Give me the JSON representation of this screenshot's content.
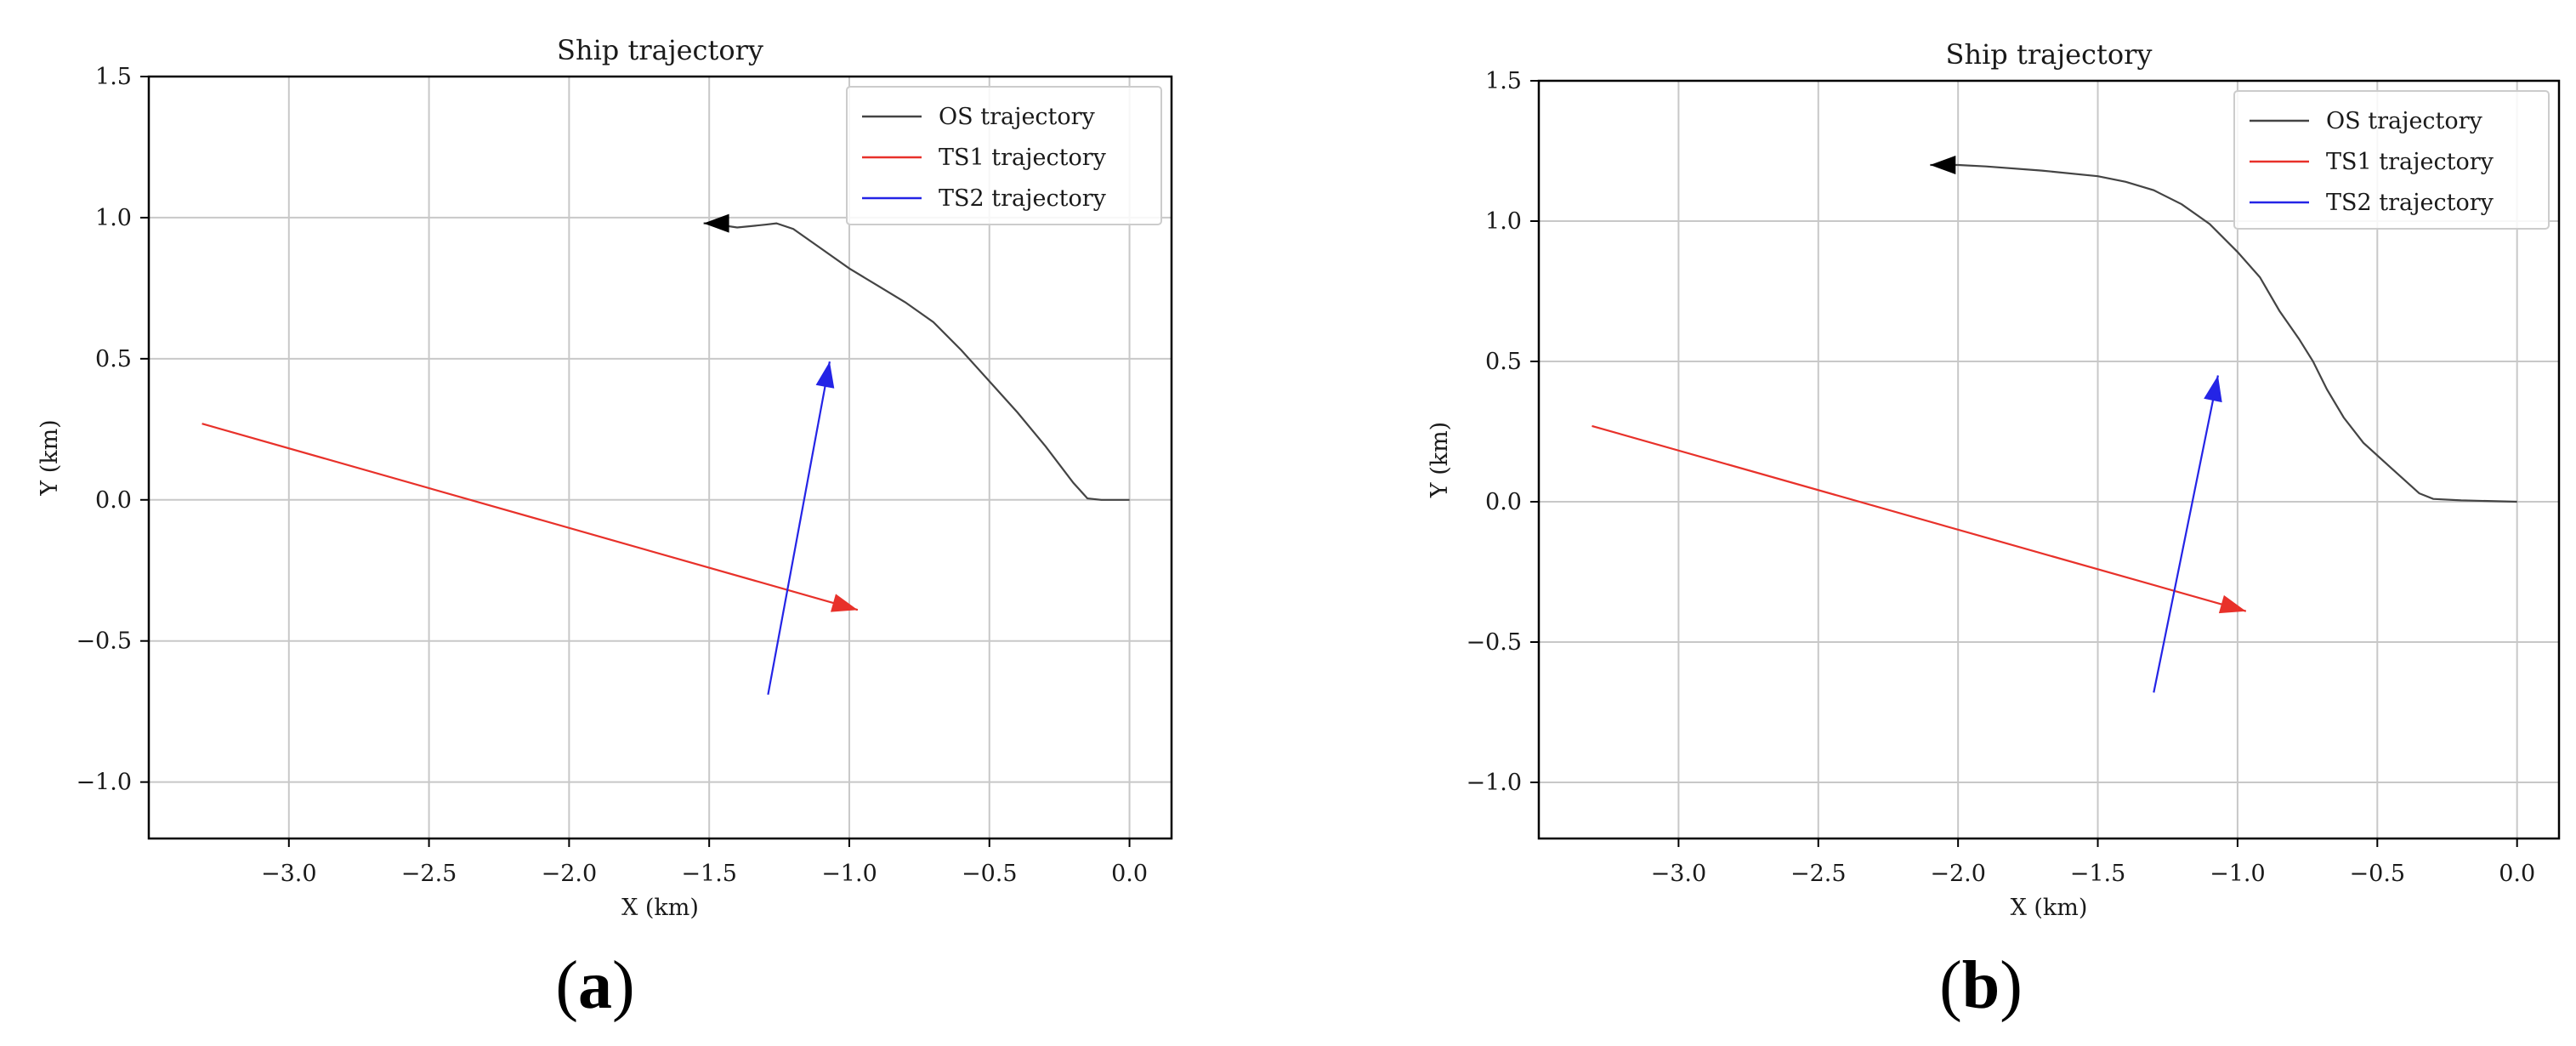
{
  "chart_data": [
    {
      "panel": "(a)",
      "type": "line",
      "title": "Ship trajectory",
      "xlabel": "X (km)",
      "ylabel": "Y (km)",
      "xlim": [
        -3.5,
        0.15
      ],
      "ylim": [
        -1.2,
        1.5
      ],
      "xticks": [
        -3.0,
        -2.5,
        -2.0,
        -1.5,
        -1.0,
        -0.5,
        0.0
      ],
      "xtick_labels": [
        "−3.0",
        "−2.5",
        "−2.0",
        "−1.5",
        "−1.0",
        "−0.5",
        "0.0"
      ],
      "yticks": [
        -1.0,
        -0.5,
        0.0,
        0.5,
        1.0,
        1.5
      ],
      "ytick_labels": [
        "−1.0",
        "−0.5",
        "0.0",
        "0.5",
        "1.0",
        "1.5"
      ],
      "grid": true,
      "legend_position": "top-right",
      "series": [
        {
          "name": "OS trajectory",
          "color": "#444444",
          "arrow_at_end": true,
          "points": [
            [
              0.0,
              0.0
            ],
            [
              -0.1,
              0.0
            ],
            [
              -0.15,
              0.005
            ],
            [
              -0.2,
              0.06
            ],
            [
              -0.3,
              0.19
            ],
            [
              -0.4,
              0.31
            ],
            [
              -0.5,
              0.42
            ],
            [
              -0.6,
              0.53
            ],
            [
              -0.7,
              0.63
            ],
            [
              -0.8,
              0.7
            ],
            [
              -0.9,
              0.76
            ],
            [
              -1.0,
              0.82
            ],
            [
              -1.1,
              0.89
            ],
            [
              -1.2,
              0.96
            ],
            [
              -1.26,
              0.98
            ],
            [
              -1.3,
              0.975
            ],
            [
              -1.4,
              0.965
            ],
            [
              -1.5,
              0.98
            ],
            [
              -1.52,
              0.98
            ]
          ]
        },
        {
          "name": "TS1 trajectory",
          "color": "#e8312a",
          "arrow_at_end": true,
          "points": [
            [
              -3.31,
              0.27
            ],
            [
              -0.97,
              -0.39
            ]
          ]
        },
        {
          "name": "TS2 trajectory",
          "color": "#2424e6",
          "arrow_at_end": true,
          "points": [
            [
              -1.29,
              -0.69
            ],
            [
              -1.07,
              0.49
            ]
          ]
        }
      ]
    },
    {
      "panel": "(b)",
      "type": "line",
      "title": "Ship trajectory",
      "xlabel": "X (km)",
      "ylabel": "Y (km)",
      "xlim": [
        -3.5,
        0.15
      ],
      "ylim": [
        -1.2,
        1.5
      ],
      "xticks": [
        -3.0,
        -2.5,
        -2.0,
        -1.5,
        -1.0,
        -0.5,
        0.0
      ],
      "xtick_labels": [
        "−3.0",
        "−2.5",
        "−2.0",
        "−1.5",
        "−1.0",
        "−0.5",
        "0.0"
      ],
      "yticks": [
        -1.0,
        -0.5,
        0.0,
        0.5,
        1.0,
        1.5
      ],
      "ytick_labels": [
        "−1.0",
        "−0.5",
        "0.0",
        "0.5",
        "1.0",
        "1.5"
      ],
      "grid": true,
      "legend_position": "top-right",
      "series": [
        {
          "name": "OS trajectory",
          "color": "#444444",
          "arrow_at_end": true,
          "points": [
            [
              0.0,
              0.0
            ],
            [
              -0.2,
              0.005
            ],
            [
              -0.3,
              0.01
            ],
            [
              -0.35,
              0.03
            ],
            [
              -0.45,
              0.12
            ],
            [
              -0.55,
              0.21
            ],
            [
              -0.62,
              0.3
            ],
            [
              -0.68,
              0.4
            ],
            [
              -0.73,
              0.5
            ],
            [
              -0.78,
              0.58
            ],
            [
              -0.85,
              0.68
            ],
            [
              -0.92,
              0.8
            ],
            [
              -1.0,
              0.89
            ],
            [
              -1.1,
              0.99
            ],
            [
              -1.2,
              1.06
            ],
            [
              -1.3,
              1.11
            ],
            [
              -1.4,
              1.14
            ],
            [
              -1.5,
              1.16
            ],
            [
              -1.7,
              1.18
            ],
            [
              -1.9,
              1.195
            ],
            [
              -2.0,
              1.2
            ],
            [
              -2.1,
              1.2
            ]
          ]
        },
        {
          "name": "TS1 trajectory",
          "color": "#e8312a",
          "arrow_at_end": true,
          "points": [
            [
              -3.31,
              0.27
            ],
            [
              -0.97,
              -0.39
            ]
          ]
        },
        {
          "name": "TS2 trajectory",
          "color": "#2424e6",
          "arrow_at_end": true,
          "points": [
            [
              -1.3,
              -0.68
            ],
            [
              -1.07,
              0.45
            ]
          ]
        }
      ]
    }
  ]
}
